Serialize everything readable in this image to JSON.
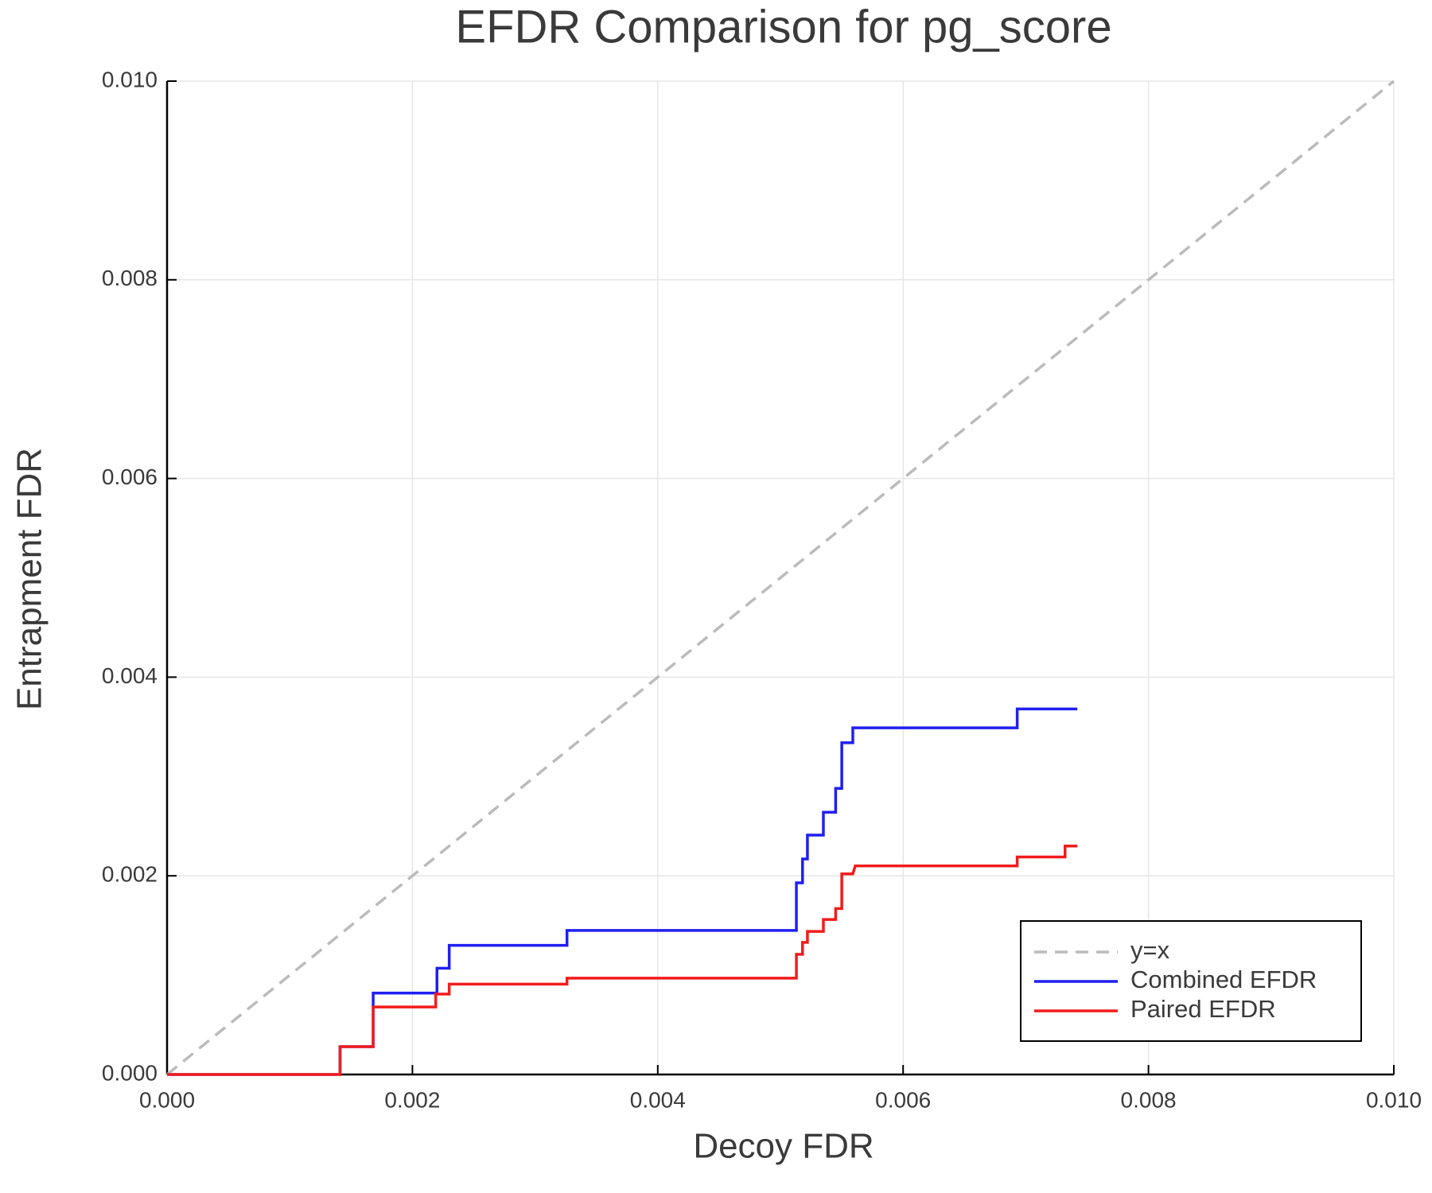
{
  "chart_data": {
    "type": "line",
    "title": "EFDR Comparison for pg_score",
    "x_label": "Decoy FDR",
    "y_label": "Entrapment FDR",
    "xlim": [
      0,
      0.01
    ],
    "ylim": [
      0,
      0.01
    ],
    "xticks": [
      {
        "value": 0,
        "label": "0.000"
      },
      0.002,
      0.004,
      0.006,
      0.008,
      {
        "value": 0.01,
        "label": "0.010"
      }
    ],
    "yticks": [
      {
        "value": 0,
        "label": "0.000"
      },
      0.002,
      0.004,
      0.006,
      0.008,
      {
        "value": 0.01,
        "label": "0.010"
      }
    ],
    "grid": true,
    "legend": "bottom-right",
    "series": [
      {
        "name": "y=x",
        "color": "#bbbbbb",
        "style": "dashed",
        "x": [
          0,
          0.01
        ],
        "values": [
          0,
          0.01
        ]
      },
      {
        "name": "Combined EFDR",
        "color": "#1f1ff2",
        "style": "solid",
        "x": [
          0,
          0.00141,
          0.00141,
          0.00168,
          0.00168,
          0.0022,
          0.0022,
          0.0023,
          0.0023,
          0.00326,
          0.00326,
          0.00513,
          0.00513,
          0.00518,
          0.00518,
          0.00522,
          0.00522,
          0.00535,
          0.00535,
          0.00545,
          0.00545,
          0.0055,
          0.0055,
          0.00559,
          0.00559,
          0.00693,
          0.00693,
          0.00742
        ],
        "values": [
          0,
          0,
          0.00028,
          0.00028,
          0.00082,
          0.00082,
          0.00107,
          0.00107,
          0.0013,
          0.0013,
          0.00145,
          0.00145,
          0.00193,
          0.00193,
          0.00217,
          0.00217,
          0.00241,
          0.00241,
          0.00264,
          0.00264,
          0.00288,
          0.00288,
          0.00334,
          0.00334,
          0.00349,
          0.00349,
          0.00368,
          0.00368
        ]
      },
      {
        "name": "Paired EFDR",
        "color": "#f21c1c",
        "style": "solid",
        "x": [
          0,
          0.00141,
          0.00141,
          0.00168,
          0.00168,
          0.00219,
          0.00219,
          0.0023,
          0.0023,
          0.00326,
          0.00326,
          0.00513,
          0.00513,
          0.00518,
          0.00518,
          0.00522,
          0.00522,
          0.00535,
          0.00535,
          0.00545,
          0.00545,
          0.0055,
          0.0055,
          0.00559,
          0.00561,
          0.00693,
          0.00693,
          0.00732,
          0.00732,
          0.00742
        ],
        "values": [
          0,
          0,
          0.00028,
          0.00028,
          0.00068,
          0.00068,
          0.00081,
          0.00081,
          0.00091,
          0.00091,
          0.00097,
          0.00097,
          0.00121,
          0.00121,
          0.00133,
          0.00133,
          0.00144,
          0.00144,
          0.00156,
          0.00156,
          0.00167,
          0.00167,
          0.00202,
          0.00202,
          0.0021,
          0.0021,
          0.00219,
          0.00219,
          0.0023,
          0.0023
        ]
      }
    ]
  }
}
